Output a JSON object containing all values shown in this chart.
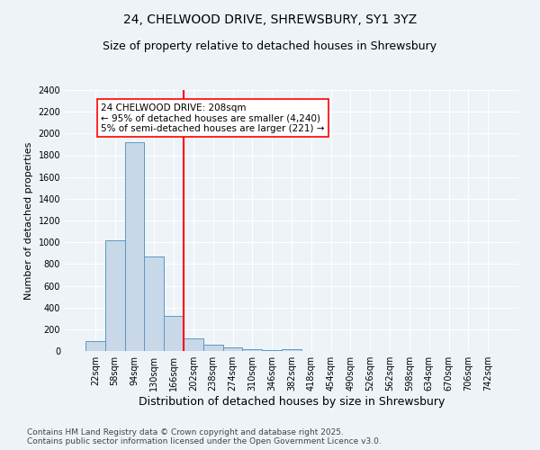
{
  "title": "24, CHELWOOD DRIVE, SHREWSBURY, SY1 3YZ",
  "subtitle": "Size of property relative to detached houses in Shrewsbury",
  "xlabel": "Distribution of detached houses by size in Shrewsbury",
  "ylabel": "Number of detached properties",
  "categories": [
    "22sqm",
    "58sqm",
    "94sqm",
    "130sqm",
    "166sqm",
    "202sqm",
    "238sqm",
    "274sqm",
    "310sqm",
    "346sqm",
    "382sqm",
    "418sqm",
    "454sqm",
    "490sqm",
    "526sqm",
    "562sqm",
    "598sqm",
    "634sqm",
    "670sqm",
    "706sqm",
    "742sqm"
  ],
  "values": [
    90,
    1020,
    1920,
    870,
    320,
    115,
    55,
    35,
    20,
    8,
    14,
    0,
    0,
    0,
    0,
    0,
    0,
    0,
    0,
    0,
    0
  ],
  "bar_color": "#c8d8e8",
  "bar_edge_color": "#5a9abf",
  "vline_x": 4.5,
  "vline_color": "red",
  "vline_lw": 1.5,
  "annotation_text": "24 CHELWOOD DRIVE: 208sqm\n← 95% of detached houses are smaller (4,240)\n5% of semi-detached houses are larger (221) →",
  "annotation_box_color": "white",
  "annotation_box_edge": "red",
  "ylim": [
    0,
    2400
  ],
  "yticks": [
    0,
    200,
    400,
    600,
    800,
    1000,
    1200,
    1400,
    1600,
    1800,
    2000,
    2200,
    2400
  ],
  "background_color": "#eef3f8",
  "grid_color": "white",
  "footer": "Contains HM Land Registry data © Crown copyright and database right 2025.\nContains public sector information licensed under the Open Government Licence v3.0.",
  "title_fontsize": 10,
  "subtitle_fontsize": 9,
  "xlabel_fontsize": 9,
  "ylabel_fontsize": 8,
  "tick_fontsize": 7,
  "footer_fontsize": 6.5,
  "annotation_fontsize": 7.5
}
